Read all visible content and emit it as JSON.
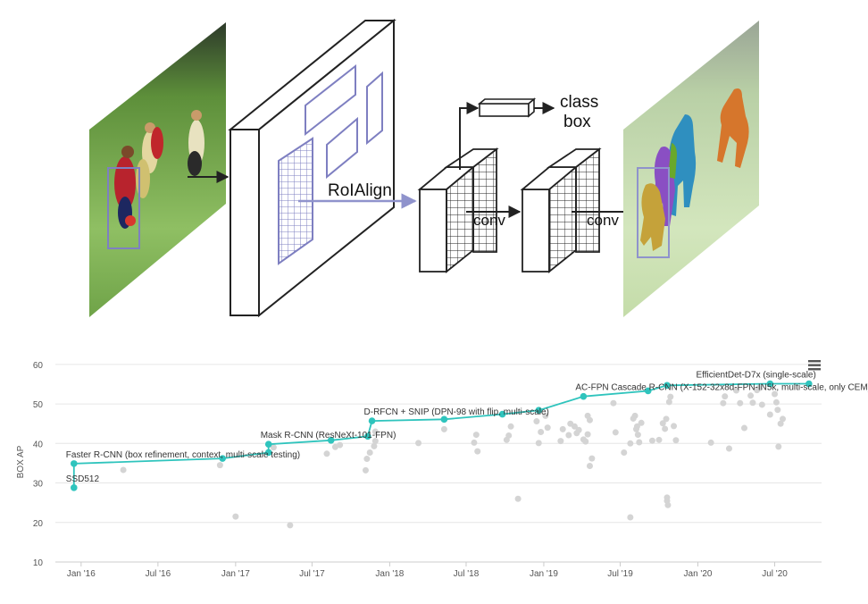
{
  "diagram": {
    "roialign_label": "RoIAlign",
    "conv_label_1": "conv",
    "conv_label_2": "conv",
    "head_class_label": "class",
    "head_box_label": "box",
    "colors": {
      "field_light": "#8fbf63",
      "field_dark": "#3f7a2a",
      "grid_line": "#7e7fc1",
      "arrow_blue": "#8f93cc",
      "mask_orange": "#d6762c",
      "mask_blue": "#2f8fbf",
      "mask_purple": "#8a4fc3",
      "mask_green": "#69a82b",
      "mask_gold": "#c5a23a"
    }
  },
  "chart_data": {
    "type": "scatter",
    "ylabel": "BOX AP",
    "ylim": [
      10,
      62
    ],
    "yticks": [
      10,
      20,
      30,
      40,
      50,
      60
    ],
    "xlim": [
      "2015-11-01",
      "2020-10-20"
    ],
    "xticks": [
      {
        "label": "Jan '16",
        "date": "2016-01-01"
      },
      {
        "label": "Jul '16",
        "date": "2016-07-01"
      },
      {
        "label": "Jan '17",
        "date": "2017-01-01"
      },
      {
        "label": "Jul '17",
        "date": "2017-07-01"
      },
      {
        "label": "Jan '18",
        "date": "2018-01-01"
      },
      {
        "label": "Jul '18",
        "date": "2018-07-01"
      },
      {
        "label": "Jan '19",
        "date": "2019-01-01"
      },
      {
        "label": "Jul '19",
        "date": "2019-07-01"
      },
      {
        "label": "Jan '20",
        "date": "2020-01-01"
      },
      {
        "label": "Jul '20",
        "date": "2020-07-01"
      }
    ],
    "grid": true,
    "colors": {
      "sota": "#2fc4bd",
      "other": "#d4d4d4",
      "grid": "#e6e6e6",
      "axis_text": "#555555"
    },
    "sota": [
      {
        "date": "2015-12-15",
        "y": 28.8
      },
      {
        "date": "2015-12-15",
        "y": 34.9
      },
      {
        "date": "2016-12-01",
        "y": 36.2
      },
      {
        "date": "2017-03-20",
        "y": 37.7
      },
      {
        "date": "2017-03-20",
        "y": 39.8
      },
      {
        "date": "2017-08-15",
        "y": 40.8
      },
      {
        "date": "2017-11-10",
        "y": 41.8
      },
      {
        "date": "2017-11-20",
        "y": 45.7
      },
      {
        "date": "2018-05-10",
        "y": 46.1
      },
      {
        "date": "2018-09-25",
        "y": 47.4
      },
      {
        "date": "2018-12-20",
        "y": 48.4
      },
      {
        "date": "2019-04-05",
        "y": 51.9
      },
      {
        "date": "2019-09-05",
        "y": 53.3
      },
      {
        "date": "2019-10-20",
        "y": 54.7
      },
      {
        "date": "2020-06-20",
        "y": 55.1
      },
      {
        "date": "2020-09-20",
        "y": 55.1
      }
    ],
    "labels": [
      {
        "text": "SSD512",
        "date": "2015-12-15",
        "y": 28.8
      },
      {
        "text": "Faster R-CNN (box refinement, context, multi-scale testing)",
        "date": "2015-12-15",
        "y": 34.9
      },
      {
        "text": "Mask R-CNN (ResNeXt-101-FPN)",
        "date": "2017-03-20",
        "y": 39.8
      },
      {
        "text": "D-RFCN + SNIP (DPN-98 with flip, multi-scale)",
        "date": "2017-11-20",
        "y": 45.7
      },
      {
        "text": "AC-FPN Cascade R-CNN (X-152-32x8d-FPN-IN5k, multi-scale, only CEM)",
        "date": "2019-04-05",
        "y": 51.9
      },
      {
        "text": "EfficientDet-D7x (single-scale)",
        "date": "2020-09-20",
        "y": 55.1
      }
    ],
    "others": [
      {
        "date": "2016-04-10",
        "y": 33.3
      },
      {
        "date": "2016-11-25",
        "y": 34.5
      },
      {
        "date": "2017-01-01",
        "y": 21.5
      },
      {
        "date": "2017-04-01",
        "y": 39.0
      },
      {
        "date": "2017-05-10",
        "y": 19.3
      },
      {
        "date": "2017-08-05",
        "y": 37.4
      },
      {
        "date": "2017-08-25",
        "y": 39.1
      },
      {
        "date": "2017-09-05",
        "y": 39.6
      },
      {
        "date": "2017-11-05",
        "y": 33.2
      },
      {
        "date": "2017-11-08",
        "y": 36.1
      },
      {
        "date": "2017-11-15",
        "y": 37.7
      },
      {
        "date": "2017-11-25",
        "y": 39.3
      },
      {
        "date": "2017-11-28",
        "y": 40.6
      },
      {
        "date": "2017-11-28",
        "y": 43.0
      },
      {
        "date": "2018-03-10",
        "y": 40.1
      },
      {
        "date": "2018-05-10",
        "y": 43.6
      },
      {
        "date": "2018-07-20",
        "y": 40.2
      },
      {
        "date": "2018-07-25",
        "y": 42.2
      },
      {
        "date": "2018-07-28",
        "y": 38.0
      },
      {
        "date": "2018-10-05",
        "y": 40.9
      },
      {
        "date": "2018-10-10",
        "y": 42.0
      },
      {
        "date": "2018-10-15",
        "y": 44.3
      },
      {
        "date": "2018-11-01",
        "y": 26.0
      },
      {
        "date": "2018-12-15",
        "y": 45.6
      },
      {
        "date": "2018-12-20",
        "y": 40.1
      },
      {
        "date": "2018-12-25",
        "y": 42.9
      },
      {
        "date": "2019-01-05",
        "y": 47.0
      },
      {
        "date": "2019-01-10",
        "y": 44.0
      },
      {
        "date": "2019-02-10",
        "y": 40.6
      },
      {
        "date": "2019-02-15",
        "y": 43.6
      },
      {
        "date": "2019-03-01",
        "y": 42.1
      },
      {
        "date": "2019-03-05",
        "y": 45.0
      },
      {
        "date": "2019-03-15",
        "y": 44.3
      },
      {
        "date": "2019-03-20",
        "y": 42.6
      },
      {
        "date": "2019-03-25",
        "y": 43.4
      },
      {
        "date": "2019-04-05",
        "y": 41.0
      },
      {
        "date": "2019-04-10",
        "y": 40.5
      },
      {
        "date": "2019-04-15",
        "y": 42.3
      },
      {
        "date": "2019-04-15",
        "y": 47.0
      },
      {
        "date": "2019-04-20",
        "y": 45.9
      },
      {
        "date": "2019-04-20",
        "y": 34.3
      },
      {
        "date": "2019-04-25",
        "y": 36.2
      },
      {
        "date": "2019-06-15",
        "y": 50.2
      },
      {
        "date": "2019-06-20",
        "y": 42.8
      },
      {
        "date": "2019-07-10",
        "y": 37.7
      },
      {
        "date": "2019-07-25",
        "y": 40.0
      },
      {
        "date": "2019-07-25",
        "y": 21.3
      },
      {
        "date": "2019-08-01",
        "y": 46.3
      },
      {
        "date": "2019-08-05",
        "y": 47.0
      },
      {
        "date": "2019-08-08",
        "y": 43.6
      },
      {
        "date": "2019-08-10",
        "y": 44.3
      },
      {
        "date": "2019-08-12",
        "y": 42.2
      },
      {
        "date": "2019-08-15",
        "y": 40.3
      },
      {
        "date": "2019-08-20",
        "y": 45.2
      },
      {
        "date": "2019-09-15",
        "y": 40.7
      },
      {
        "date": "2019-10-01",
        "y": 40.9
      },
      {
        "date": "2019-10-10",
        "y": 45.1
      },
      {
        "date": "2019-10-15",
        "y": 43.7
      },
      {
        "date": "2019-10-18",
        "y": 46.2
      },
      {
        "date": "2019-10-20",
        "y": 26.3
      },
      {
        "date": "2019-10-20",
        "y": 25.5
      },
      {
        "date": "2019-10-22",
        "y": 24.4
      },
      {
        "date": "2019-10-25",
        "y": 50.5
      },
      {
        "date": "2019-10-28",
        "y": 51.8
      },
      {
        "date": "2019-11-10",
        "y": 40.8
      },
      {
        "date": "2019-11-05",
        "y": 44.4
      },
      {
        "date": "2020-02-01",
        "y": 40.2
      },
      {
        "date": "2020-03-01",
        "y": 50.2
      },
      {
        "date": "2020-03-05",
        "y": 51.9
      },
      {
        "date": "2020-03-15",
        "y": 38.7
      },
      {
        "date": "2020-04-01",
        "y": 53.4
      },
      {
        "date": "2020-04-10",
        "y": 50.2
      },
      {
        "date": "2020-04-20",
        "y": 43.9
      },
      {
        "date": "2020-05-05",
        "y": 52.1
      },
      {
        "date": "2020-05-10",
        "y": 50.3
      },
      {
        "date": "2020-05-20",
        "y": 53.5
      },
      {
        "date": "2020-05-25",
        "y": 54.0
      },
      {
        "date": "2020-06-01",
        "y": 49.8
      },
      {
        "date": "2020-06-20",
        "y": 47.3
      },
      {
        "date": "2020-07-01",
        "y": 52.5
      },
      {
        "date": "2020-07-05",
        "y": 50.4
      },
      {
        "date": "2020-07-08",
        "y": 48.5
      },
      {
        "date": "2020-07-10",
        "y": 39.2
      },
      {
        "date": "2020-07-15",
        "y": 45.0
      },
      {
        "date": "2020-07-20",
        "y": 46.2
      }
    ]
  }
}
